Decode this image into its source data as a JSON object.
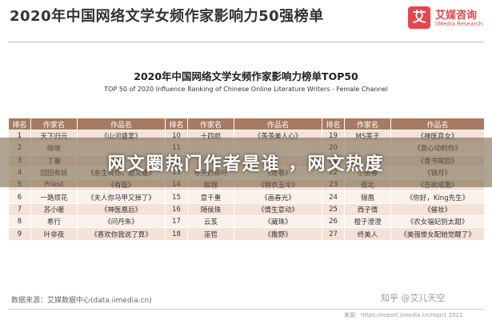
{
  "header": {
    "title": "2020年中国网络文学女频作家影响力50强榜单",
    "logo_badge": "艾",
    "logo_name": "艾媒咨询",
    "logo_sub": "iiMedia Research"
  },
  "subtitle": {
    "cn": "2020年中国网络文学女频作家影响力榜单TOP50",
    "en": "TOP 50 of 2020 Influence Ranking of Chinese Online Literature Writers - Female Channel"
  },
  "table": {
    "headers": [
      "排名",
      "作家名",
      "作品名",
      "排名",
      "作家名",
      "作品名",
      "排名",
      "作家名",
      "作品名"
    ],
    "rows": [
      [
        "1",
        "天下归元",
        "《山河盛宴》",
        "10",
        "十四郎",
        "《羡羡美人心》",
        "19",
        "MS芙子",
        "《神医弃女》"
      ],
      [
        "2",
        "吱吱",
        "",
        "11",
        "",
        "",
        "20",
        "",
        "《我心动的你》"
      ],
      [
        "3",
        "丁墨",
        "",
        "12",
        "",
        "",
        "21",
        "",
        "《青书尾回》"
      ],
      [
        "4",
        "回回有妖",
        "《余生有你，甜又暖》",
        "13",
        "冬天的柳叶",
        "《逐巷》",
        "22",
        "小鱼春",
        "《锦月》"
      ],
      [
        "5",
        "Priest",
        "《有匪》",
        "14",
        "姒锦",
        "《锦衣玉令》",
        "23",
        "夜北",
        "《吾欲成凰》"
      ],
      [
        "6",
        "一路烦花",
        "《夫人你马甲又掉了》",
        "15",
        "意千重",
        "《画春光》",
        "24",
        "锦凰",
        "《你好，King先生》"
      ],
      [
        "7",
        "苏小暖",
        "《神医凰后》",
        "16",
        "随侯珠",
        "《情生意动》",
        "25",
        "西子情",
        "《催妆》"
      ],
      [
        "8",
        "希行",
        "《问丹朱》",
        "17",
        "云芨",
        "《藏珠》",
        "26",
        "橙子澄澄",
        "《农女福妃别太甜》"
      ],
      [
        "9",
        "叶非夜",
        "《喜欢你我说了算》",
        "18",
        "巫哲",
        "《撒野》",
        "27",
        "终美人",
        "《美强惨女配她觉醒了》"
      ]
    ]
  },
  "overlay": {
    "text": "网文圈热门作者是谁 ，网文热度"
  },
  "footer": {
    "source": "数据来源：艾媒数据中心(data.iimedia.cn)",
    "watermark": "知乎 @艾儿天空",
    "url": "来源：https://report.iimedia.cn/repo1 2021"
  }
}
